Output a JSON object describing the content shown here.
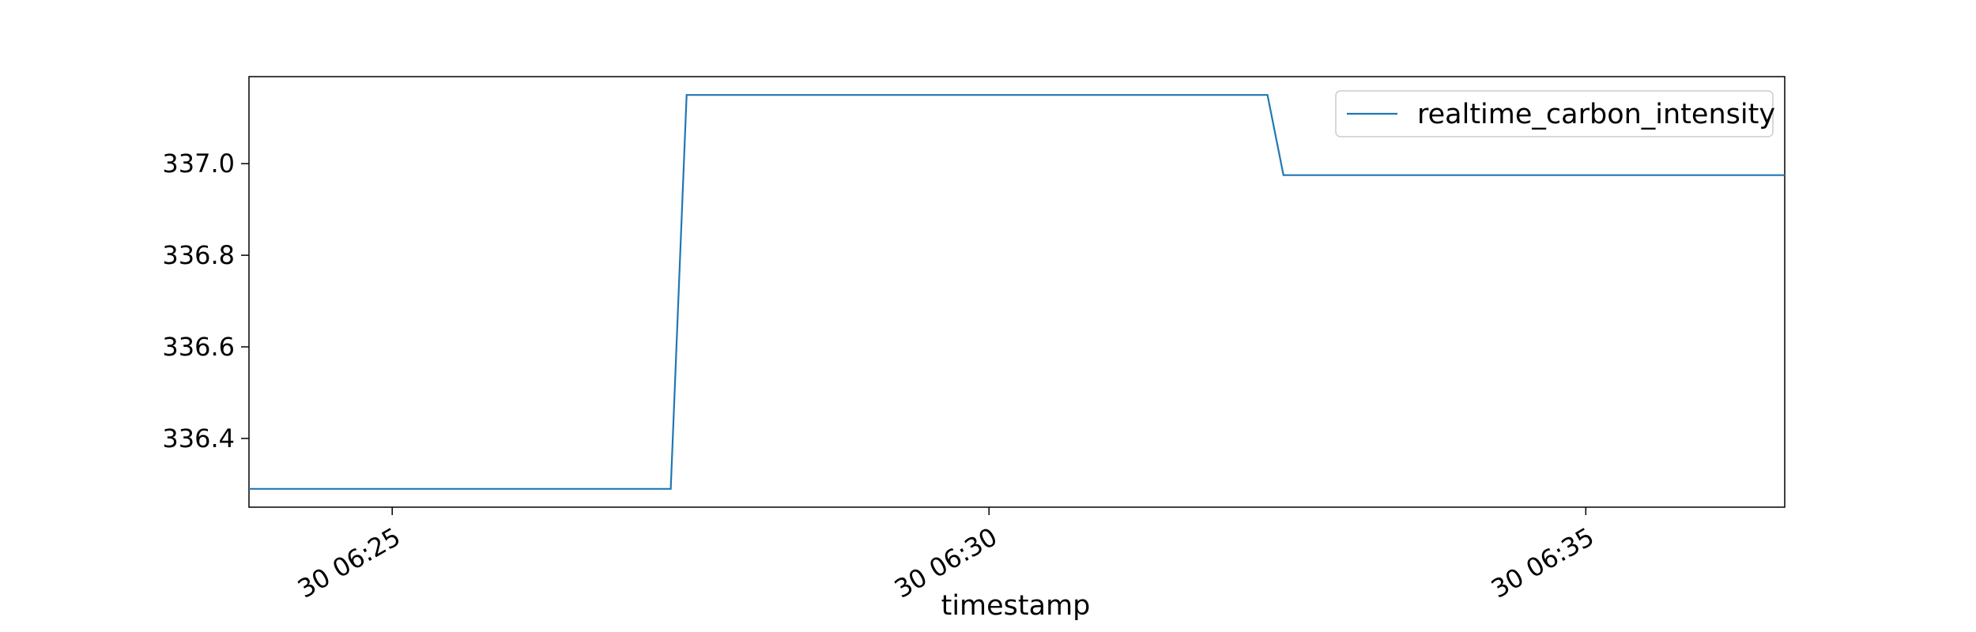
{
  "chart_data": {
    "type": "line",
    "title": "",
    "xlabel": "timestamp",
    "ylabel": "",
    "x_tick_labels": [
      "30 06:25",
      "30 06:30",
      "30 06:35"
    ],
    "x_tick_times": [
      "06:25",
      "06:30",
      "06:35"
    ],
    "xlim": [
      "06:23:48",
      "06:36:40"
    ],
    "y_tick_labels": [
      "336.4",
      "336.6",
      "336.8",
      "337.0"
    ],
    "y_ticks": [
      336.4,
      336.6,
      336.8,
      337.0
    ],
    "ylim": [
      336.25,
      337.19
    ],
    "grid": false,
    "legend": {
      "position": "upper right",
      "entries": [
        "realtime_carbon_intensity"
      ]
    },
    "series": [
      {
        "name": "realtime_carbon_intensity",
        "color": "#1f77b4",
        "points": [
          {
            "x": "06:23:48",
            "y": 336.29
          },
          {
            "x": "06:27:20",
            "y": 336.29
          },
          {
            "x": "06:27:28",
            "y": 337.15
          },
          {
            "x": "06:32:20",
            "y": 337.15
          },
          {
            "x": "06:32:28",
            "y": 336.975
          },
          {
            "x": "06:36:40",
            "y": 336.975
          }
        ]
      }
    ]
  }
}
